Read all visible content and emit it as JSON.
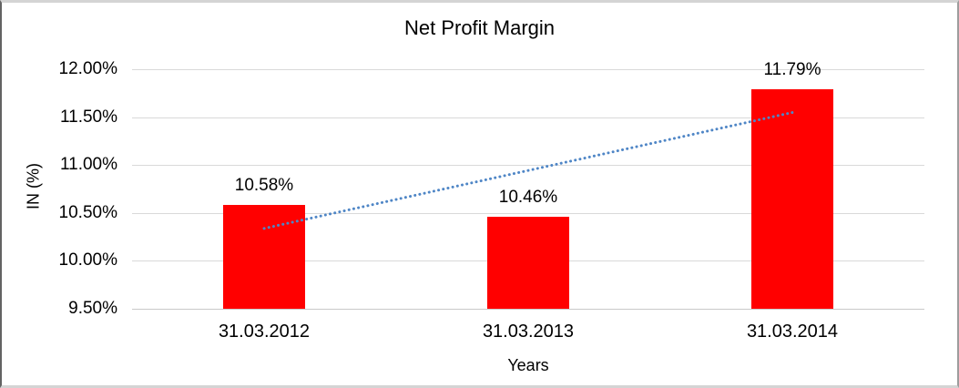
{
  "chart_data": {
    "type": "bar",
    "title": "Net Profit Margin",
    "categories": [
      "31.03.2012",
      "31.03.2013",
      "31.03.2014"
    ],
    "values": [
      10.58,
      10.46,
      11.79
    ],
    "data_labels": [
      "10.58%",
      "10.46%",
      "11.79%"
    ],
    "xlabel": "Years",
    "ylabel": "IN (%)",
    "ylim": [
      9.5,
      12.0
    ],
    "ytick_step": 0.5,
    "ytick_labels_top_down": [
      "12.00%",
      "11.50%",
      "11.00%",
      "10.50%",
      "10.00%",
      "9.50%"
    ],
    "bar_color": "#ff0000",
    "grid_color": "#d9d9d9",
    "axis_line_color": "#c9c9c9",
    "trendline": {
      "type": "linear",
      "style": "dotted",
      "color": "#4f86c6"
    },
    "gridlines": true,
    "legend": "none"
  }
}
